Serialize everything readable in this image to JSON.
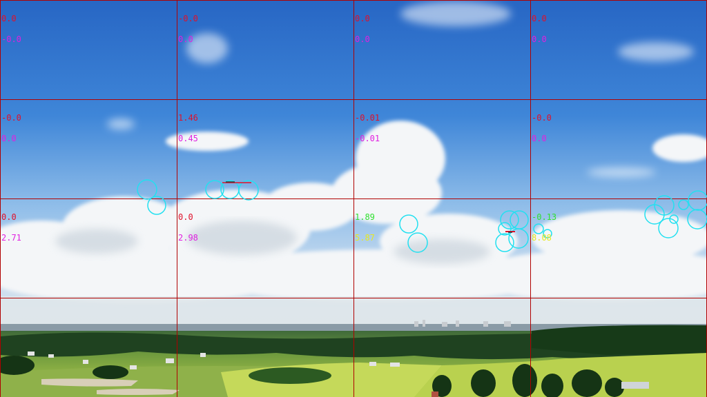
{
  "colors": {
    "grid_line": "#b00000",
    "circle": "#22e0f0",
    "red": "#e0102a",
    "magenta": "#e020e0",
    "green": "#30e030",
    "yellow": "#e8e820",
    "sky_top": "#2a6fc8",
    "sky_low": "#9fc8ee",
    "field": "#b8d24a",
    "forest": "#1f4d1f"
  },
  "cells": [
    {
      "top": "0.0",
      "bottom": "-0.0",
      "top_color": "red",
      "bottom_color": "magenta"
    },
    {
      "top": "-0.0",
      "bottom": "0.0",
      "top_color": "red",
      "bottom_color": "magenta"
    },
    {
      "top": "0.0",
      "bottom": "0.0",
      "top_color": "red",
      "bottom_color": "magenta"
    },
    {
      "top": "0.0",
      "bottom": "0.0",
      "top_color": "red",
      "bottom_color": "magenta"
    },
    {
      "top": "-0.0",
      "bottom": "0.0",
      "top_color": "red",
      "bottom_color": "magenta"
    },
    {
      "top": "1.46",
      "bottom": "0.45",
      "top_color": "red",
      "bottom_color": "magenta"
    },
    {
      "top": "-0.01",
      "bottom": "-0.01",
      "top_color": "red",
      "bottom_color": "magenta"
    },
    {
      "top": "-0.0",
      "bottom": "0.0",
      "top_color": "red",
      "bottom_color": "magenta"
    },
    {
      "top": "0.0",
      "bottom": "2.71",
      "top_color": "red",
      "bottom_color": "magenta"
    },
    {
      "top": "0.0",
      "bottom": "2.98",
      "top_color": "red",
      "bottom_color": "magenta"
    },
    {
      "top": "1.89",
      "bottom": "5.87",
      "top_color": "green",
      "bottom_color": "yellow"
    },
    {
      "top": "-0.13",
      "bottom": "8.08",
      "top_color": "green",
      "bottom_color": "yellow"
    }
  ]
}
